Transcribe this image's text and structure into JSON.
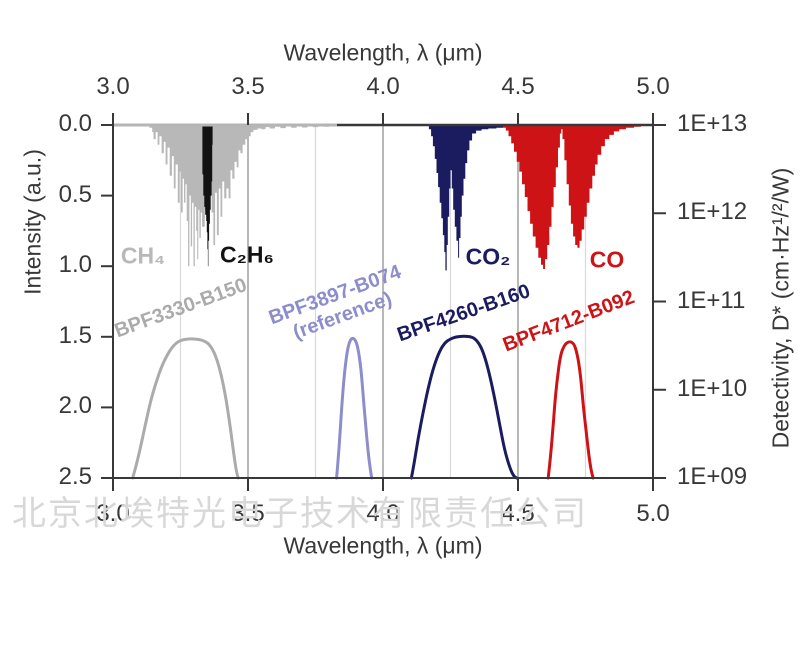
{
  "watermark": "北京北埃特光电子技术有限责任公司",
  "colors": {
    "axis": "#383838",
    "grid_minor": "#d9d9d9",
    "grid_major": "#a0a0a0",
    "watermark": "#d8d8d8",
    "background": "#ffffff"
  },
  "chart_data": {
    "type": "area+line",
    "title": "",
    "top_xlabel": "Wavelength, λ (μm)",
    "bottom_xlabel": "Wavelength, λ (μm)",
    "left_ylabel": "Intensity (a.u.)",
    "right_ylabel": "Detectivity, D* (cm·Hz¹/²/W)",
    "x_range": [
      3.0,
      5.0
    ],
    "x_tick_labels": [
      "3.0",
      "3.5",
      "4.0",
      "4.5",
      "5.0"
    ],
    "x_tick_values": [
      3.0,
      3.5,
      4.0,
      4.5,
      5.0
    ],
    "x_gridlines_minor": [
      3.25,
      3.75,
      4.25,
      4.75
    ],
    "x_gridlines_major": [
      3.5,
      4.0,
      4.5
    ],
    "left_y_range": [
      0,
      2.5
    ],
    "left_y_inverted": true,
    "left_y_tick_labels": [
      "0.0",
      "0.5",
      "1.0",
      "1.5",
      "2.0",
      "2.5"
    ],
    "left_y_tick_values": [
      0,
      0.5,
      1.0,
      1.5,
      2.0,
      2.5
    ],
    "right_y_tick_labels": [
      "1E+13",
      "1E+12",
      "1E+11",
      "1E+10",
      "1E+09"
    ],
    "right_y_log_range": [
      10000000000000.0,
      1000000000.0
    ],
    "grid": "vertical-only",
    "legend_position": "none",
    "absorption_bands": [
      {
        "name": "CH4",
        "label": "CH₄",
        "color": "#b8b8b8",
        "points": [
          [
            3.135,
            0.02
          ],
          [
            3.145,
            0.05
          ],
          [
            3.15,
            0.1
          ],
          [
            3.158,
            0.05
          ],
          [
            3.165,
            0.14
          ],
          [
            3.172,
            0.08
          ],
          [
            3.18,
            0.2
          ],
          [
            3.188,
            0.12
          ],
          [
            3.195,
            0.28
          ],
          [
            3.202,
            0.16
          ],
          [
            3.21,
            0.36
          ],
          [
            3.218,
            0.22
          ],
          [
            3.225,
            0.45
          ],
          [
            3.232,
            0.28
          ],
          [
            3.24,
            0.55
          ],
          [
            3.247,
            0.33
          ],
          [
            3.252,
            0.62
          ],
          [
            3.258,
            0.38
          ],
          [
            3.263,
            0.55
          ],
          [
            3.268,
            0.42
          ],
          [
            3.273,
            0.68
          ],
          [
            3.278,
            1.0
          ],
          [
            3.283,
            0.5
          ],
          [
            3.288,
            0.86
          ],
          [
            3.293,
            0.55
          ],
          [
            3.298,
            1.0
          ],
          [
            3.303,
            0.58
          ],
          [
            3.308,
            0.75
          ],
          [
            3.312,
            0.95
          ],
          [
            3.316,
            0.6
          ],
          [
            3.32,
            0.8
          ],
          [
            3.325,
            0.62
          ],
          [
            3.33,
            0.72
          ],
          [
            3.34,
            0.6
          ],
          [
            3.35,
            0.55
          ],
          [
            3.358,
            0.5
          ],
          [
            3.365,
            0.62
          ],
          [
            3.372,
            0.85
          ],
          [
            3.378,
            0.48
          ],
          [
            3.385,
            0.78
          ],
          [
            3.392,
            0.45
          ],
          [
            3.398,
            0.65
          ],
          [
            3.405,
            0.4
          ],
          [
            3.412,
            0.52
          ],
          [
            3.42,
            0.45
          ],
          [
            3.428,
            0.52
          ],
          [
            3.435,
            0.32
          ],
          [
            3.442,
            0.38
          ],
          [
            3.45,
            0.26
          ],
          [
            3.458,
            0.3
          ],
          [
            3.465,
            0.18
          ],
          [
            3.472,
            0.2
          ],
          [
            3.48,
            0.14
          ],
          [
            3.49,
            0.1
          ],
          [
            3.5,
            0.08
          ],
          [
            3.51,
            0.05
          ],
          [
            3.52,
            0.035
          ],
          [
            3.535,
            0.025
          ],
          [
            3.55,
            0.03
          ],
          [
            3.565,
            0.015
          ],
          [
            3.58,
            0.025
          ],
          [
            3.6,
            0.012
          ],
          [
            3.62,
            0.022
          ],
          [
            3.64,
            0.01
          ],
          [
            3.66,
            0.02
          ],
          [
            3.68,
            0.009
          ],
          [
            3.7,
            0.018
          ],
          [
            3.72,
            0.008
          ],
          [
            3.74,
            0.015
          ],
          [
            3.76,
            0.007
          ],
          [
            3.78,
            0.012
          ],
          [
            3.8,
            0.005
          ],
          [
            3.82,
            0.01
          ],
          [
            3.83,
            0.002
          ]
        ]
      },
      {
        "name": "C2H6",
        "label": "C₂H₆",
        "color": "#121212",
        "points": [
          [
            3.331,
            0.35
          ],
          [
            3.3345,
            0.5
          ],
          [
            3.338,
            0.58
          ],
          [
            3.3415,
            0.635
          ],
          [
            3.345,
            0.68
          ],
          [
            3.3475,
            0.76
          ],
          [
            3.3495,
            0.88
          ],
          [
            3.3515,
            1.0
          ],
          [
            3.3535,
            0.82
          ],
          [
            3.356,
            0.7
          ],
          [
            3.359,
            0.6
          ],
          [
            3.362,
            0.5
          ],
          [
            3.365,
            0.4
          ],
          [
            3.3675,
            0.14
          ],
          [
            3.369,
            0.03
          ]
        ]
      },
      {
        "name": "CO2",
        "label": "CO₂",
        "color": "#1b1b60",
        "points": [
          [
            4.17,
            0.03
          ],
          [
            4.178,
            0.08
          ],
          [
            4.185,
            0.15
          ],
          [
            4.192,
            0.24
          ],
          [
            4.198,
            0.34
          ],
          [
            4.204,
            0.44
          ],
          [
            4.21,
            0.55
          ],
          [
            4.216,
            0.66
          ],
          [
            4.222,
            0.78
          ],
          [
            4.227,
            0.9
          ],
          [
            4.231,
            1.03
          ],
          [
            4.236,
            0.85
          ],
          [
            4.24,
            0.65
          ],
          [
            4.245,
            0.45
          ],
          [
            4.25,
            0.32
          ],
          [
            4.255,
            0.45
          ],
          [
            4.26,
            0.6
          ],
          [
            4.266,
            0.72
          ],
          [
            4.272,
            0.82
          ],
          [
            4.278,
            0.94
          ],
          [
            4.282,
            0.8
          ],
          [
            4.287,
            0.65
          ],
          [
            4.292,
            0.5
          ],
          [
            4.298,
            0.38
          ],
          [
            4.305,
            0.27
          ],
          [
            4.312,
            0.18
          ],
          [
            4.32,
            0.11
          ],
          [
            4.33,
            0.06
          ],
          [
            4.345,
            0.04
          ],
          [
            4.365,
            0.03
          ],
          [
            4.39,
            0.025
          ],
          [
            4.42,
            0.02
          ],
          [
            4.445,
            0.015
          ]
        ]
      },
      {
        "name": "CO",
        "label": "CO",
        "color": "#ce1316",
        "points": [
          [
            4.445,
            0.02
          ],
          [
            4.455,
            0.04
          ],
          [
            4.465,
            0.08
          ],
          [
            4.475,
            0.13
          ],
          [
            4.485,
            0.19
          ],
          [
            4.495,
            0.26
          ],
          [
            4.505,
            0.33
          ],
          [
            4.515,
            0.42
          ],
          [
            4.525,
            0.51
          ],
          [
            4.535,
            0.61
          ],
          [
            4.545,
            0.7
          ],
          [
            4.555,
            0.79
          ],
          [
            4.565,
            0.87
          ],
          [
            4.575,
            0.94
          ],
          [
            4.585,
            0.99
          ],
          [
            4.593,
            1.02
          ],
          [
            4.6,
            0.95
          ],
          [
            4.608,
            0.85
          ],
          [
            4.616,
            0.72
          ],
          [
            4.624,
            0.58
          ],
          [
            4.632,
            0.44
          ],
          [
            4.64,
            0.3
          ],
          [
            4.648,
            0.16
          ],
          [
            4.655,
            0.06
          ],
          [
            4.66,
            0.03
          ],
          [
            4.665,
            0.1
          ],
          [
            4.672,
            0.25
          ],
          [
            4.68,
            0.42
          ],
          [
            4.688,
            0.57
          ],
          [
            4.696,
            0.7
          ],
          [
            4.704,
            0.79
          ],
          [
            4.712,
            0.85
          ],
          [
            4.72,
            0.87
          ],
          [
            4.728,
            0.82
          ],
          [
            4.736,
            0.74
          ],
          [
            4.745,
            0.65
          ],
          [
            4.755,
            0.55
          ],
          [
            4.765,
            0.45
          ],
          [
            4.775,
            0.36
          ],
          [
            4.785,
            0.28
          ],
          [
            4.795,
            0.21
          ],
          [
            4.808,
            0.15
          ],
          [
            4.822,
            0.1
          ],
          [
            4.838,
            0.07
          ],
          [
            4.855,
            0.045
          ],
          [
            4.875,
            0.03
          ],
          [
            4.9,
            0.02
          ],
          [
            4.93,
            0.012
          ],
          [
            4.955,
            0.005
          ]
        ]
      }
    ],
    "filter_curves": [
      {
        "name": "BPF3330-B150",
        "label": "BPF3330-B150",
        "sublabel": "",
        "color": "#ababab",
        "points": [
          [
            3.073,
            2.5
          ],
          [
            3.085,
            2.42
          ],
          [
            3.1,
            2.3
          ],
          [
            3.12,
            2.12
          ],
          [
            3.14,
            1.95
          ],
          [
            3.16,
            1.82
          ],
          [
            3.18,
            1.71
          ],
          [
            3.2,
            1.63
          ],
          [
            3.22,
            1.57
          ],
          [
            3.24,
            1.535
          ],
          [
            3.26,
            1.52
          ],
          [
            3.28,
            1.515
          ],
          [
            3.3,
            1.515
          ],
          [
            3.32,
            1.52
          ],
          [
            3.34,
            1.53
          ],
          [
            3.36,
            1.56
          ],
          [
            3.38,
            1.63
          ],
          [
            3.4,
            1.76
          ],
          [
            3.42,
            1.95
          ],
          [
            3.435,
            2.15
          ],
          [
            3.45,
            2.37
          ],
          [
            3.46,
            2.48
          ],
          [
            3.464,
            2.5
          ]
        ]
      },
      {
        "name": "BPF3897-B074",
        "label": "BPF3897-B074",
        "sublabel": "(reference)",
        "color": "#8d8dcc",
        "points": [
          [
            3.828,
            2.5
          ],
          [
            3.835,
            2.35
          ],
          [
            3.842,
            2.15
          ],
          [
            3.85,
            1.92
          ],
          [
            3.858,
            1.74
          ],
          [
            3.866,
            1.62
          ],
          [
            3.874,
            1.545
          ],
          [
            3.882,
            1.515
          ],
          [
            3.89,
            1.51
          ],
          [
            3.898,
            1.525
          ],
          [
            3.906,
            1.57
          ],
          [
            3.914,
            1.66
          ],
          [
            3.922,
            1.8
          ],
          [
            3.93,
            2.0
          ],
          [
            3.94,
            2.22
          ],
          [
            3.95,
            2.4
          ],
          [
            3.958,
            2.5
          ]
        ]
      },
      {
        "name": "BPF4260-B160",
        "label": "BPF4260-B160",
        "sublabel": "",
        "color": "#1b1b5f",
        "points": [
          [
            4.105,
            2.5
          ],
          [
            4.115,
            2.4
          ],
          [
            4.13,
            2.22
          ],
          [
            4.15,
            2.02
          ],
          [
            4.17,
            1.84
          ],
          [
            4.19,
            1.7
          ],
          [
            4.21,
            1.6
          ],
          [
            4.23,
            1.54
          ],
          [
            4.25,
            1.515
          ],
          [
            4.27,
            1.5
          ],
          [
            4.3,
            1.495
          ],
          [
            4.33,
            1.5
          ],
          [
            4.35,
            1.53
          ],
          [
            4.37,
            1.6
          ],
          [
            4.39,
            1.73
          ],
          [
            4.41,
            1.9
          ],
          [
            4.43,
            2.1
          ],
          [
            4.45,
            2.3
          ],
          [
            4.47,
            2.43
          ],
          [
            4.485,
            2.49
          ],
          [
            4.495,
            2.5
          ]
        ]
      },
      {
        "name": "BPF4712-B092",
        "label": "BPF4712-B092",
        "sublabel": "",
        "color": "#ce1316",
        "points": [
          [
            4.612,
            2.5
          ],
          [
            4.62,
            2.36
          ],
          [
            4.628,
            2.18
          ],
          [
            4.636,
            1.98
          ],
          [
            4.644,
            1.82
          ],
          [
            4.652,
            1.7
          ],
          [
            4.66,
            1.615
          ],
          [
            4.668,
            1.575
          ],
          [
            4.676,
            1.55
          ],
          [
            4.684,
            1.54
          ],
          [
            4.692,
            1.535
          ],
          [
            4.7,
            1.54
          ],
          [
            4.708,
            1.555
          ],
          [
            4.716,
            1.6
          ],
          [
            4.724,
            1.67
          ],
          [
            4.732,
            1.78
          ],
          [
            4.74,
            1.95
          ],
          [
            4.75,
            2.13
          ],
          [
            4.76,
            2.3
          ],
          [
            4.77,
            2.44
          ],
          [
            4.778,
            2.5
          ]
        ]
      }
    ]
  }
}
